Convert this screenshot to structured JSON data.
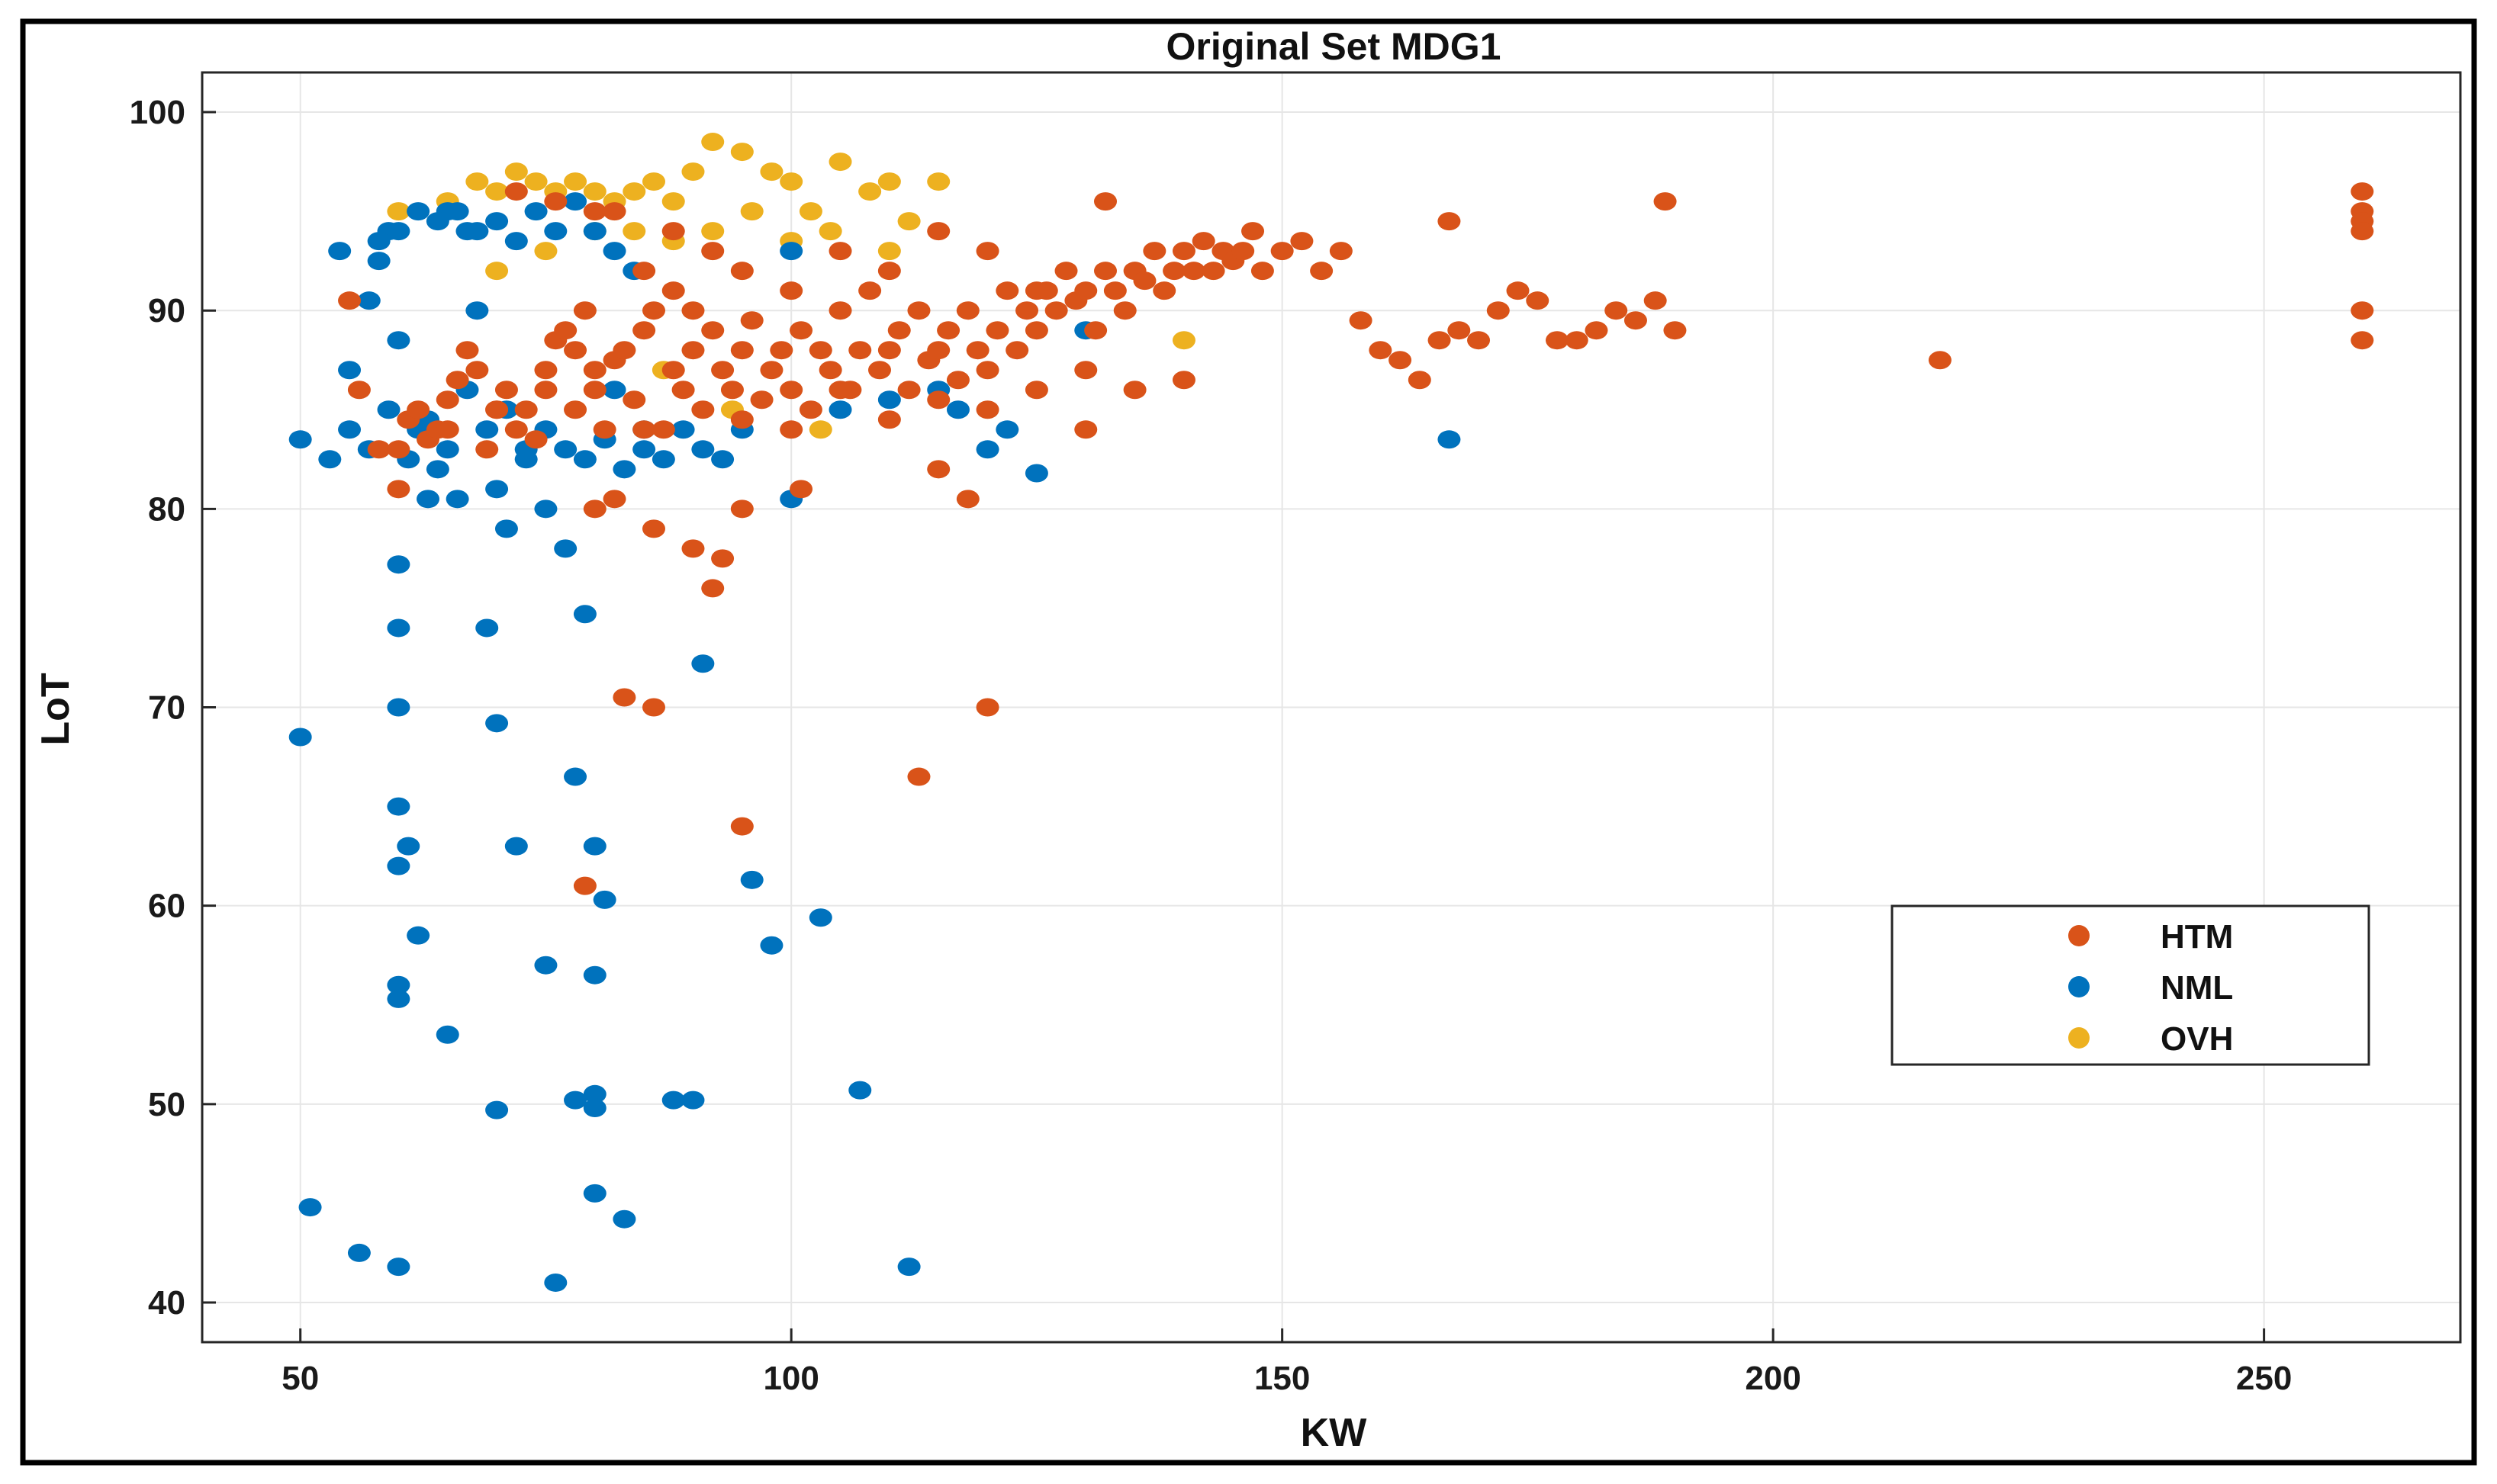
{
  "chart_data": {
    "type": "scatter",
    "title": "Original Set MDG1",
    "xlabel": "KW",
    "ylabel": "LoT",
    "xlim": [
      40,
      270
    ],
    "ylim": [
      38,
      102
    ],
    "xticks": [
      50,
      100,
      150,
      200,
      250
    ],
    "yticks": [
      40,
      50,
      60,
      70,
      80,
      90,
      100
    ],
    "grid": true,
    "legend_position": "right-middle",
    "series": [
      {
        "name": "HTM",
        "color": "#D95319",
        "points": [
          [
            55,
            90.5
          ],
          [
            56,
            86
          ],
          [
            58,
            83
          ],
          [
            60,
            81
          ],
          [
            61,
            84.5
          ],
          [
            62,
            85
          ],
          [
            63,
            83.5
          ],
          [
            64,
            84
          ],
          [
            65,
            85.5
          ],
          [
            66,
            86.5
          ],
          [
            67,
            88
          ],
          [
            68,
            87
          ],
          [
            69,
            83
          ],
          [
            70,
            85
          ],
          [
            71,
            86
          ],
          [
            72,
            84
          ],
          [
            73,
            85
          ],
          [
            74,
            83.5
          ],
          [
            75,
            87
          ],
          [
            76,
            88.5
          ],
          [
            77,
            89
          ],
          [
            78,
            85
          ],
          [
            79,
            90
          ],
          [
            80,
            86
          ],
          [
            81,
            84
          ],
          [
            82,
            87.5
          ],
          [
            83,
            88
          ],
          [
            84,
            85.5
          ],
          [
            85,
            89
          ],
          [
            86,
            90
          ],
          [
            87,
            84
          ],
          [
            88,
            87
          ],
          [
            89,
            86
          ],
          [
            90,
            88
          ],
          [
            91,
            85
          ],
          [
            92,
            89
          ],
          [
            93,
            87
          ],
          [
            94,
            86
          ],
          [
            95,
            88
          ],
          [
            96,
            89.5
          ],
          [
            97,
            85.5
          ],
          [
            98,
            87
          ],
          [
            99,
            88
          ],
          [
            100,
            86
          ],
          [
            101,
            89
          ],
          [
            102,
            85
          ],
          [
            103,
            88
          ],
          [
            104,
            87
          ],
          [
            105,
            90
          ],
          [
            106,
            86
          ],
          [
            107,
            88
          ],
          [
            108,
            91
          ],
          [
            109,
            87
          ],
          [
            110,
            88
          ],
          [
            111,
            89
          ],
          [
            112,
            86
          ],
          [
            113,
            90
          ],
          [
            114,
            87.5
          ],
          [
            115,
            88
          ],
          [
            116,
            89
          ],
          [
            117,
            86.5
          ],
          [
            118,
            90
          ],
          [
            119,
            88
          ],
          [
            120,
            87
          ],
          [
            121,
            89
          ],
          [
            122,
            91
          ],
          [
            123,
            88
          ],
          [
            124,
            90
          ],
          [
            125,
            89
          ],
          [
            126,
            91
          ],
          [
            127,
            90
          ],
          [
            128,
            92
          ],
          [
            129,
            90.5
          ],
          [
            130,
            91
          ],
          [
            131,
            89
          ],
          [
            132,
            92
          ],
          [
            133,
            91
          ],
          [
            134,
            90
          ],
          [
            135,
            92
          ],
          [
            136,
            91.5
          ],
          [
            137,
            93
          ],
          [
            138,
            91
          ],
          [
            139,
            92
          ],
          [
            140,
            93
          ],
          [
            141,
            92
          ],
          [
            142,
            93.5
          ],
          [
            143,
            92
          ],
          [
            144,
            93
          ],
          [
            145,
            92.5
          ],
          [
            146,
            93
          ],
          [
            147,
            94
          ],
          [
            148,
            92
          ],
          [
            150,
            93
          ],
          [
            152,
            93.5
          ],
          [
            154,
            92
          ],
          [
            156,
            93
          ],
          [
            158,
            89.5
          ],
          [
            160,
            88
          ],
          [
            162,
            87.5
          ],
          [
            164,
            86.5
          ],
          [
            166,
            88.5
          ],
          [
            168,
            89
          ],
          [
            170,
            88.5
          ],
          [
            172,
            90
          ],
          [
            174,
            91
          ],
          [
            176,
            90.5
          ],
          [
            178,
            88.5
          ],
          [
            180,
            88.5
          ],
          [
            182,
            89
          ],
          [
            184,
            90
          ],
          [
            186,
            89.5
          ],
          [
            188,
            90.5
          ],
          [
            190,
            89
          ],
          [
            189,
            95.5
          ],
          [
            167,
            94.5
          ],
          [
            132,
            95.5
          ],
          [
            92,
            93
          ],
          [
            80,
            95
          ],
          [
            86,
            79
          ],
          [
            90,
            78
          ],
          [
            93,
            77.5
          ],
          [
            95,
            80
          ],
          [
            92,
            76
          ],
          [
            83,
            70.5
          ],
          [
            86,
            70
          ],
          [
            120,
            70
          ],
          [
            113,
            66.5
          ],
          [
            95,
            64
          ],
          [
            79,
            61
          ],
          [
            80,
            80
          ],
          [
            82,
            80.5
          ],
          [
            101,
            81
          ],
          [
            115,
            82
          ],
          [
            118,
            80.5
          ],
          [
            217,
            87.5
          ],
          [
            260,
            96
          ],
          [
            260,
            95
          ],
          [
            260,
            94.5
          ],
          [
            260,
            94
          ],
          [
            260,
            90
          ],
          [
            260,
            88.5
          ],
          [
            85,
            92
          ],
          [
            88,
            91
          ],
          [
            90,
            90
          ],
          [
            95,
            92
          ],
          [
            100,
            91
          ],
          [
            105,
            93
          ],
          [
            110,
            92
          ],
          [
            115,
            94
          ],
          [
            120,
            93
          ],
          [
            125,
            91
          ],
          [
            78,
            88
          ],
          [
            80,
            87
          ],
          [
            75,
            86
          ],
          [
            70,
            85
          ],
          [
            65,
            84
          ],
          [
            60,
            83
          ],
          [
            85,
            84
          ],
          [
            95,
            84.5
          ],
          [
            105,
            86
          ],
          [
            115,
            85.5
          ],
          [
            125,
            86
          ],
          [
            130,
            87
          ],
          [
            135,
            86
          ],
          [
            140,
            86.5
          ],
          [
            100,
            84
          ],
          [
            110,
            84.5
          ],
          [
            120,
            85
          ],
          [
            130,
            84
          ],
          [
            72,
            96
          ],
          [
            76,
            95.5
          ],
          [
            82,
            95
          ],
          [
            88,
            94
          ]
        ]
      },
      {
        "name": "NML",
        "color": "#0072BD",
        "points": [
          [
            50,
            68.5
          ],
          [
            50,
            83.5
          ],
          [
            51,
            44.8
          ],
          [
            53,
            82.5
          ],
          [
            54,
            93
          ],
          [
            55,
            87
          ],
          [
            56,
            42.5
          ],
          [
            57,
            90.5
          ],
          [
            58,
            92.5
          ],
          [
            59,
            94
          ],
          [
            60,
            88.5
          ],
          [
            60,
            77.2
          ],
          [
            60,
            74
          ],
          [
            60,
            70
          ],
          [
            60,
            65
          ],
          [
            60,
            62
          ],
          [
            60,
            56
          ],
          [
            60,
            55.3
          ],
          [
            60,
            41.8
          ],
          [
            61,
            63
          ],
          [
            62,
            58.5
          ],
          [
            62,
            84
          ],
          [
            63,
            80.5
          ],
          [
            64,
            82
          ],
          [
            65,
            53.5
          ],
          [
            65,
            95
          ],
          [
            66,
            80.5
          ],
          [
            67,
            94
          ],
          [
            68,
            90
          ],
          [
            69,
            74
          ],
          [
            70,
            69.2
          ],
          [
            70,
            49.7
          ],
          [
            70,
            81
          ],
          [
            71,
            79
          ],
          [
            72,
            63
          ],
          [
            73,
            83
          ],
          [
            75,
            80
          ],
          [
            75,
            57
          ],
          [
            76,
            41
          ],
          [
            77,
            78
          ],
          [
            78,
            66.5
          ],
          [
            78,
            50.2
          ],
          [
            79,
            74.7
          ],
          [
            80,
            63
          ],
          [
            80,
            56.5
          ],
          [
            80,
            50.5
          ],
          [
            80,
            49.8
          ],
          [
            80,
            45.5
          ],
          [
            81,
            60.3
          ],
          [
            82,
            86
          ],
          [
            83,
            44.2
          ],
          [
            85,
            84
          ],
          [
            88,
            50.2
          ],
          [
            90,
            50.2
          ],
          [
            91,
            72.2
          ],
          [
            93,
            82.5
          ],
          [
            95,
            84
          ],
          [
            96,
            61.3
          ],
          [
            98,
            58
          ],
          [
            100,
            80.5
          ],
          [
            100,
            93
          ],
          [
            103,
            59.4
          ],
          [
            105,
            85
          ],
          [
            107,
            50.7
          ],
          [
            110,
            85.5
          ],
          [
            112,
            41.8
          ],
          [
            115,
            86
          ],
          [
            117,
            85
          ],
          [
            120,
            83
          ],
          [
            122,
            84
          ],
          [
            125,
            81.8
          ],
          [
            130,
            89
          ],
          [
            167,
            83.5
          ],
          [
            55,
            84
          ],
          [
            57,
            83
          ],
          [
            59,
            85
          ],
          [
            61,
            82.5
          ],
          [
            63,
            84.5
          ],
          [
            65,
            83
          ],
          [
            67,
            86
          ],
          [
            69,
            84
          ],
          [
            71,
            85
          ],
          [
            73,
            82.5
          ],
          [
            75,
            84
          ],
          [
            77,
            83
          ],
          [
            79,
            82.5
          ],
          [
            81,
            83.5
          ],
          [
            83,
            82
          ],
          [
            85,
            83
          ],
          [
            87,
            82.5
          ],
          [
            89,
            84
          ],
          [
            91,
            83
          ],
          [
            58,
            93.5
          ],
          [
            60,
            94
          ],
          [
            62,
            95
          ],
          [
            64,
            94.5
          ],
          [
            66,
            95
          ],
          [
            68,
            94
          ],
          [
            70,
            94.5
          ],
          [
            72,
            93.5
          ],
          [
            74,
            95
          ],
          [
            76,
            94
          ],
          [
            78,
            95.5
          ],
          [
            80,
            94
          ],
          [
            82,
            93
          ],
          [
            84,
            92
          ]
        ]
      },
      {
        "name": "OVH",
        "color": "#EDB120",
        "points": [
          [
            60,
            95
          ],
          [
            65,
            95.5
          ],
          [
            68,
            96.5
          ],
          [
            70,
            96
          ],
          [
            72,
            97
          ],
          [
            74,
            96.5
          ],
          [
            76,
            96
          ],
          [
            78,
            96.5
          ],
          [
            80,
            96
          ],
          [
            82,
            95.5
          ],
          [
            84,
            96
          ],
          [
            86,
            96.5
          ],
          [
            88,
            95.5
          ],
          [
            90,
            97
          ],
          [
            92,
            98.5
          ],
          [
            95,
            98
          ],
          [
            98,
            97
          ],
          [
            100,
            96.5
          ],
          [
            102,
            95
          ],
          [
            105,
            97.5
          ],
          [
            108,
            96
          ],
          [
            110,
            96.5
          ],
          [
            112,
            94.5
          ],
          [
            115,
            96.5
          ],
          [
            84,
            94
          ],
          [
            88,
            93.5
          ],
          [
            92,
            94
          ],
          [
            96,
            95
          ],
          [
            100,
            93.5
          ],
          [
            104,
            94
          ],
          [
            110,
            93
          ],
          [
            140,
            88.5
          ],
          [
            103,
            84
          ],
          [
            94,
            85
          ],
          [
            87,
            87
          ],
          [
            70,
            92
          ],
          [
            75,
            93
          ],
          [
            80,
            94
          ]
        ]
      }
    ]
  }
}
